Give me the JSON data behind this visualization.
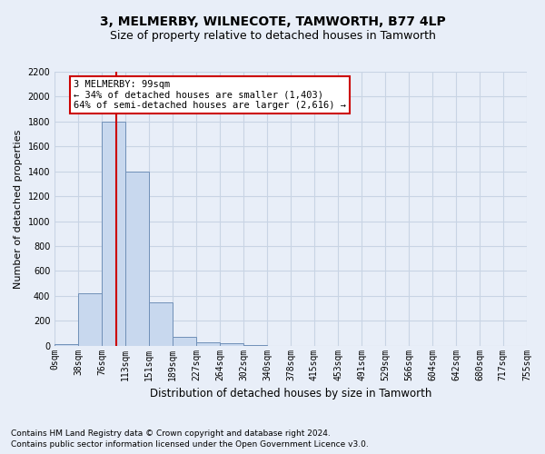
{
  "title": "3, MELMERBY, WILNECOTE, TAMWORTH, B77 4LP",
  "subtitle": "Size of property relative to detached houses in Tamworth",
  "xlabel": "Distribution of detached houses by size in Tamworth",
  "ylabel": "Number of detached properties",
  "footer_line1": "Contains HM Land Registry data © Crown copyright and database right 2024.",
  "footer_line2": "Contains public sector information licensed under the Open Government Licence v3.0.",
  "bar_color": "#c8d8ee",
  "bar_edge_color": "#7090b8",
  "grid_color": "#c8d4e4",
  "background_color": "#e8eef8",
  "plot_bg_color": "#e8eef8",
  "annotation_text": "3 MELMERBY: 99sqm\n← 34% of detached houses are smaller (1,403)\n64% of semi-detached houses are larger (2,616) →",
  "annotation_box_facecolor": "#ffffff",
  "annotation_box_edge": "#cc0000",
  "marker_line_color": "#cc0000",
  "marker_value": 99,
  "bin_edges": [
    0,
    38,
    76,
    113,
    151,
    189,
    227,
    264,
    302,
    340,
    378,
    415,
    453,
    491,
    529,
    566,
    604,
    642,
    680,
    717,
    755
  ],
  "bin_labels": [
    "0sqm",
    "38sqm",
    "76sqm",
    "113sqm",
    "151sqm",
    "189sqm",
    "227sqm",
    "264sqm",
    "302sqm",
    "340sqm",
    "378sqm",
    "415sqm",
    "453sqm",
    "491sqm",
    "529sqm",
    "566sqm",
    "604sqm",
    "642sqm",
    "680sqm",
    "717sqm",
    "755sqm"
  ],
  "bar_heights": [
    10,
    420,
    1800,
    1400,
    350,
    70,
    25,
    20,
    5,
    0,
    0,
    0,
    0,
    0,
    0,
    0,
    0,
    0,
    0,
    0
  ],
  "ylim": [
    0,
    2200
  ],
  "yticks": [
    0,
    200,
    400,
    600,
    800,
    1000,
    1200,
    1400,
    1600,
    1800,
    2000,
    2200
  ],
  "title_fontsize": 10,
  "subtitle_fontsize": 9,
  "ylabel_fontsize": 8,
  "xlabel_fontsize": 8.5,
  "tick_fontsize": 7,
  "annotation_fontsize": 7.5,
  "footer_fontsize": 6.5
}
